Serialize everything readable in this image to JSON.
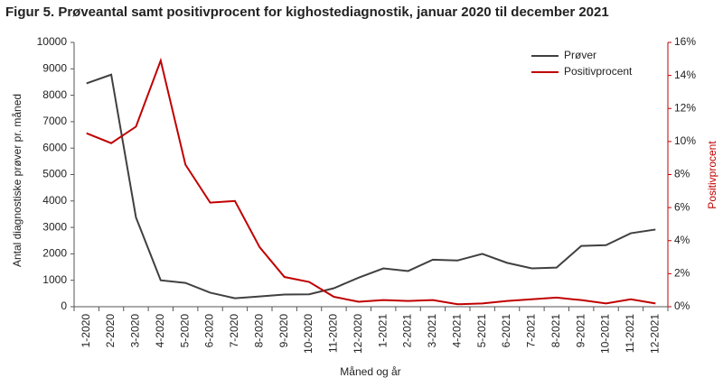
{
  "chart_data": {
    "type": "line",
    "title": "Figur 5. Prøveantal samt positivprocent for kighostediagnostik, januar 2020 til december 2021",
    "x_label": "Måned og år",
    "y_label": "Antal diagnostiske prøver pr. måned",
    "y2_label": "Positivprocent",
    "categories": [
      "1-2020",
      "2-2020",
      "3-2020",
      "4-2020",
      "5-2020",
      "6-2020",
      "7-2020",
      "8-2020",
      "9-2020",
      "10-2020",
      "11-2020",
      "12-2020",
      "1-2021",
      "2-2021",
      "3-2021",
      "4-2021",
      "5-2021",
      "6-2021",
      "7-2021",
      "8-2021",
      "9-2021",
      "10-2021",
      "11-2021",
      "12-2021"
    ],
    "series": [
      {
        "name": "Prøver",
        "color": "#404040",
        "values": [
          8450,
          8780,
          3380,
          1000,
          900,
          530,
          320,
          390,
          460,
          470,
          700,
          1100,
          1450,
          1350,
          1780,
          1750,
          2000,
          1660,
          1450,
          1480,
          2300,
          2330,
          2780,
          2920
        ]
      },
      {
        "name": "Positivprocent",
        "color": "#c00000",
        "axis": "y2",
        "values": [
          10.5,
          9.9,
          10.9,
          14.9,
          8.6,
          6.3,
          6.4,
          3.6,
          1.8,
          1.5,
          0.6,
          0.3,
          0.4,
          0.35,
          0.4,
          0.15,
          0.2,
          0.35,
          0.45,
          0.55,
          0.4,
          0.2,
          0.45,
          0.2
        ]
      }
    ],
    "ylim": [
      0,
      10000
    ],
    "yticks": [
      0,
      1000,
      2000,
      3000,
      4000,
      5000,
      6000,
      7000,
      8000,
      9000,
      10000
    ],
    "y2lim": [
      0,
      16
    ],
    "y2ticks": [
      {
        "value": 0,
        "label": "0%"
      },
      {
        "value": 2,
        "label": "2%"
      },
      {
        "value": 4,
        "label": "4%"
      },
      {
        "value": 6,
        "label": "6%"
      },
      {
        "value": 8,
        "label": "8%"
      },
      {
        "value": 10,
        "label": "10%"
      },
      {
        "value": 12,
        "label": "12%"
      },
      {
        "value": 14,
        "label": "14%"
      },
      {
        "value": 16,
        "label": "16%"
      }
    ],
    "legend": "upper right",
    "grid": false
  }
}
